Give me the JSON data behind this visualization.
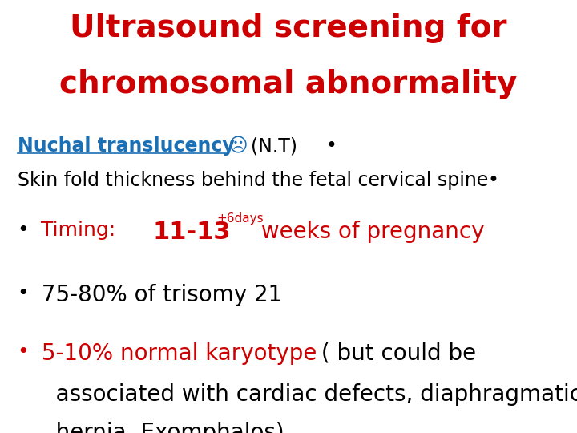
{
  "title_line1": "Ultrasound screening for",
  "title_line2": "chromosomal abnormality",
  "title_color": "#cc0000",
  "title_fontsize": 28,
  "bg_color": "#ffffff",
  "nuchal_text": "Nuchal translucency",
  "nuchal_color": "#1a6fb5",
  "sad_face": "☹",
  "nt_text": "(N.T)",
  "bullet_dot": "•",
  "line2_text": "Skin fold thickness behind the fetal cervical spine",
  "line2_color": "#000000",
  "timing_label": " Timing:   ",
  "timing_nums": "11-13",
  "timing_super": "+6days",
  "timing_rest": " weeks of pregnancy",
  "timing_color": "#cc0000",
  "bullet2_text": " 75-80% of trisomy 21",
  "bullet2_color": "#000000",
  "bullet3_red": " 5-10% normal karyotype",
  "bullet3_red_color": "#cc0000",
  "bullet3_black1": " ( but could be",
  "bullet3_black2": "   associated with cardiac defects, diaphragmatic",
  "bullet3_black3": "   hernia, Exomphalos)",
  "bullet3_black_color": "#000000"
}
